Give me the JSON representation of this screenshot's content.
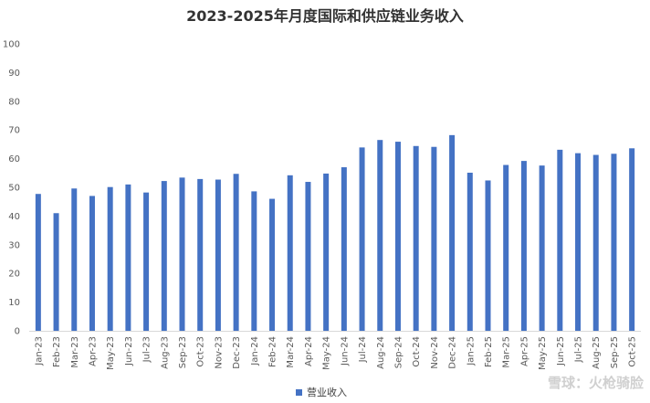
{
  "chart_data": {
    "type": "bar",
    "title": "2023-2025年月度国际和供应链业务收入",
    "xlabel": "",
    "ylabel": "",
    "ylim": [
      0,
      100
    ],
    "yticks": [
      0,
      10,
      20,
      30,
      40,
      50,
      60,
      70,
      80,
      90,
      100
    ],
    "grid": false,
    "legend_position": "bottom",
    "categories": [
      "Jan-23",
      "Feb-23",
      "Mar-23",
      "Apr-23",
      "May-23",
      "Jun-23",
      "Jul-23",
      "Aug-23",
      "Sep-23",
      "Oct-23",
      "Nov-23",
      "Dec-23",
      "Jan-24",
      "Feb-24",
      "Mar-24",
      "Apr-24",
      "May-24",
      "Jun-24",
      "Jul-24",
      "Aug-24",
      "Sep-24",
      "Oct-24",
      "Nov-24",
      "Dec-24",
      "Jan-25",
      "Feb-25",
      "Mar-25",
      "Apr-25",
      "May-25",
      "Jun-25",
      "Jul-25",
      "Aug-25",
      "Sep-25",
      "Oct-25"
    ],
    "series": [
      {
        "name": "营业收入",
        "color": "#4472C4",
        "values": [
          47.7,
          41.0,
          49.6,
          47.0,
          50.1,
          51.0,
          48.2,
          52.2,
          53.4,
          52.9,
          52.7,
          54.7,
          48.6,
          46.0,
          54.2,
          51.9,
          54.8,
          57.0,
          63.9,
          66.5,
          65.9,
          64.4,
          64.1,
          68.2,
          55.1,
          52.4,
          57.8,
          59.2,
          57.6,
          63.1,
          61.9,
          61.3,
          61.7,
          63.6
        ]
      }
    ]
  },
  "watermark": "雪球：火枪骑脸"
}
